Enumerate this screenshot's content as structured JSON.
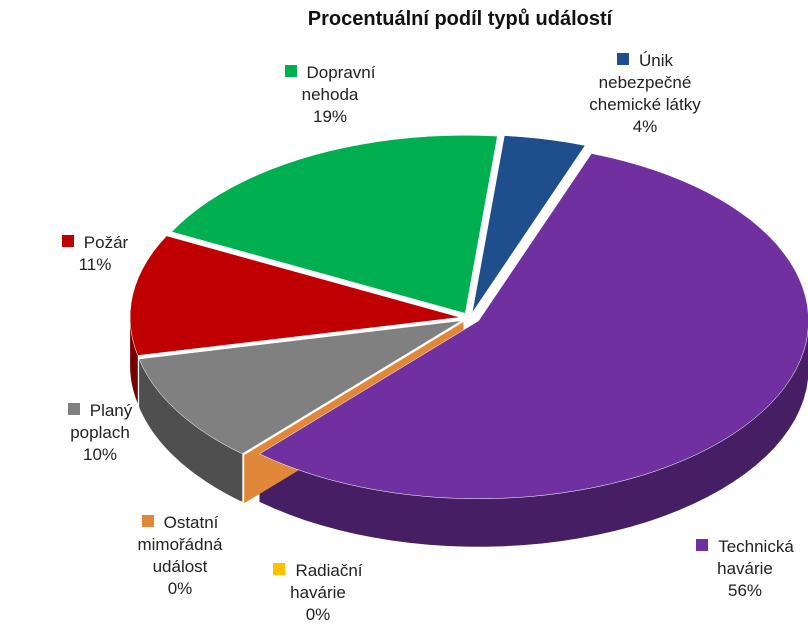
{
  "chart_data": {
    "type": "pie",
    "title": "Procentuální podíl typů událostí",
    "categories": [
      "Technická havárie",
      "Radiační havárie",
      "Ostatní mimořádná událost",
      "Planý poplach",
      "Požár",
      "Dopravní nehoda",
      "Únik nebezpečné chemické látky"
    ],
    "values": [
      56,
      0,
      0,
      10,
      11,
      19,
      4
    ],
    "value_labels": [
      "56%",
      "0%",
      "0%",
      "10%",
      "11%",
      "19%",
      "4%"
    ],
    "colors": [
      "#7030a0",
      "#ffc000",
      "#e0873a",
      "#808080",
      "#c00000",
      "#00b050",
      "#1f4e8c"
    ]
  }
}
